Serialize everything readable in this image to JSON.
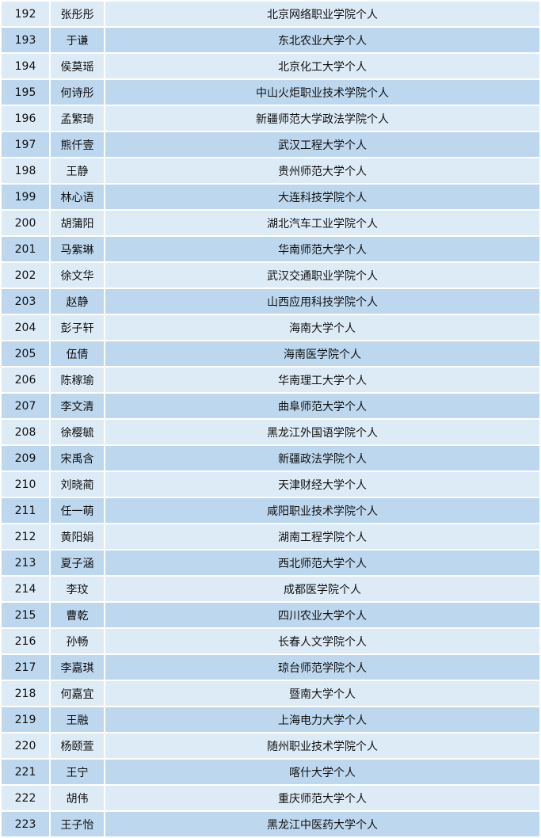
{
  "colors": {
    "row_light": "#ddebf7",
    "row_dark": "#bdd7ee"
  },
  "rows": [
    [
      "192",
      "张彤彤",
      "北京网络职业学院个人"
    ],
    [
      "193",
      "于谦",
      "东北农业大学个人"
    ],
    [
      "194",
      "侯莫瑶",
      "北京化工大学个人"
    ],
    [
      "195",
      "何诗彤",
      "中山火炬职业技术学院个人"
    ],
    [
      "196",
      "孟繁琦",
      "新疆师范大学政法学院个人"
    ],
    [
      "197",
      "熊仟壹",
      "武汉工程大学个人"
    ],
    [
      "198",
      "王静",
      "贵州师范大学个人"
    ],
    [
      "199",
      "林心语",
      "大连科技学院个人"
    ],
    [
      "200",
      "胡蒲阳",
      "湖北汽车工业学院个人"
    ],
    [
      "201",
      "马紫琳",
      "华南师范大学个人"
    ],
    [
      "202",
      "徐文华",
      "武汉交通职业学院个人"
    ],
    [
      "203",
      "赵静",
      "山西应用科技学院个人"
    ],
    [
      "204",
      "彭子轩",
      "海南大学个人"
    ],
    [
      "205",
      "伍倩",
      "海南医学院个人"
    ],
    [
      "206",
      "陈稼瑜",
      "华南理工大学个人"
    ],
    [
      "207",
      "李文清",
      "曲阜师范大学个人"
    ],
    [
      "208",
      "徐樱毓",
      "黑龙江外国语学院个人"
    ],
    [
      "209",
      "宋禹含",
      "新疆政法学院个人"
    ],
    [
      "210",
      "刘晓蔺",
      "天津财经大学个人"
    ],
    [
      "211",
      "任一萌",
      "咸阳职业技术学院个人"
    ],
    [
      "212",
      "黄阳娟",
      "湖南工程学院个人"
    ],
    [
      "213",
      "夏子涵",
      "西北师范大学个人"
    ],
    [
      "214",
      "李玟",
      "成都医学院个人"
    ],
    [
      "215",
      "曹乾",
      "四川农业大学个人"
    ],
    [
      "216",
      "孙畅",
      "长春人文学院个人"
    ],
    [
      "217",
      "李嘉琪",
      "琼台师范学院个人"
    ],
    [
      "218",
      "何嘉宜",
      "暨南大学个人"
    ],
    [
      "219",
      "王融",
      "上海电力大学个人"
    ],
    [
      "220",
      "杨颐萱",
      "随州职业技术学院个人"
    ],
    [
      "221",
      "王宁",
      "喀什大学个人"
    ],
    [
      "222",
      "胡伟",
      "重庆师范大学个人"
    ],
    [
      "223",
      "王子怡",
      "黑龙江中医药大学个人"
    ]
  ]
}
